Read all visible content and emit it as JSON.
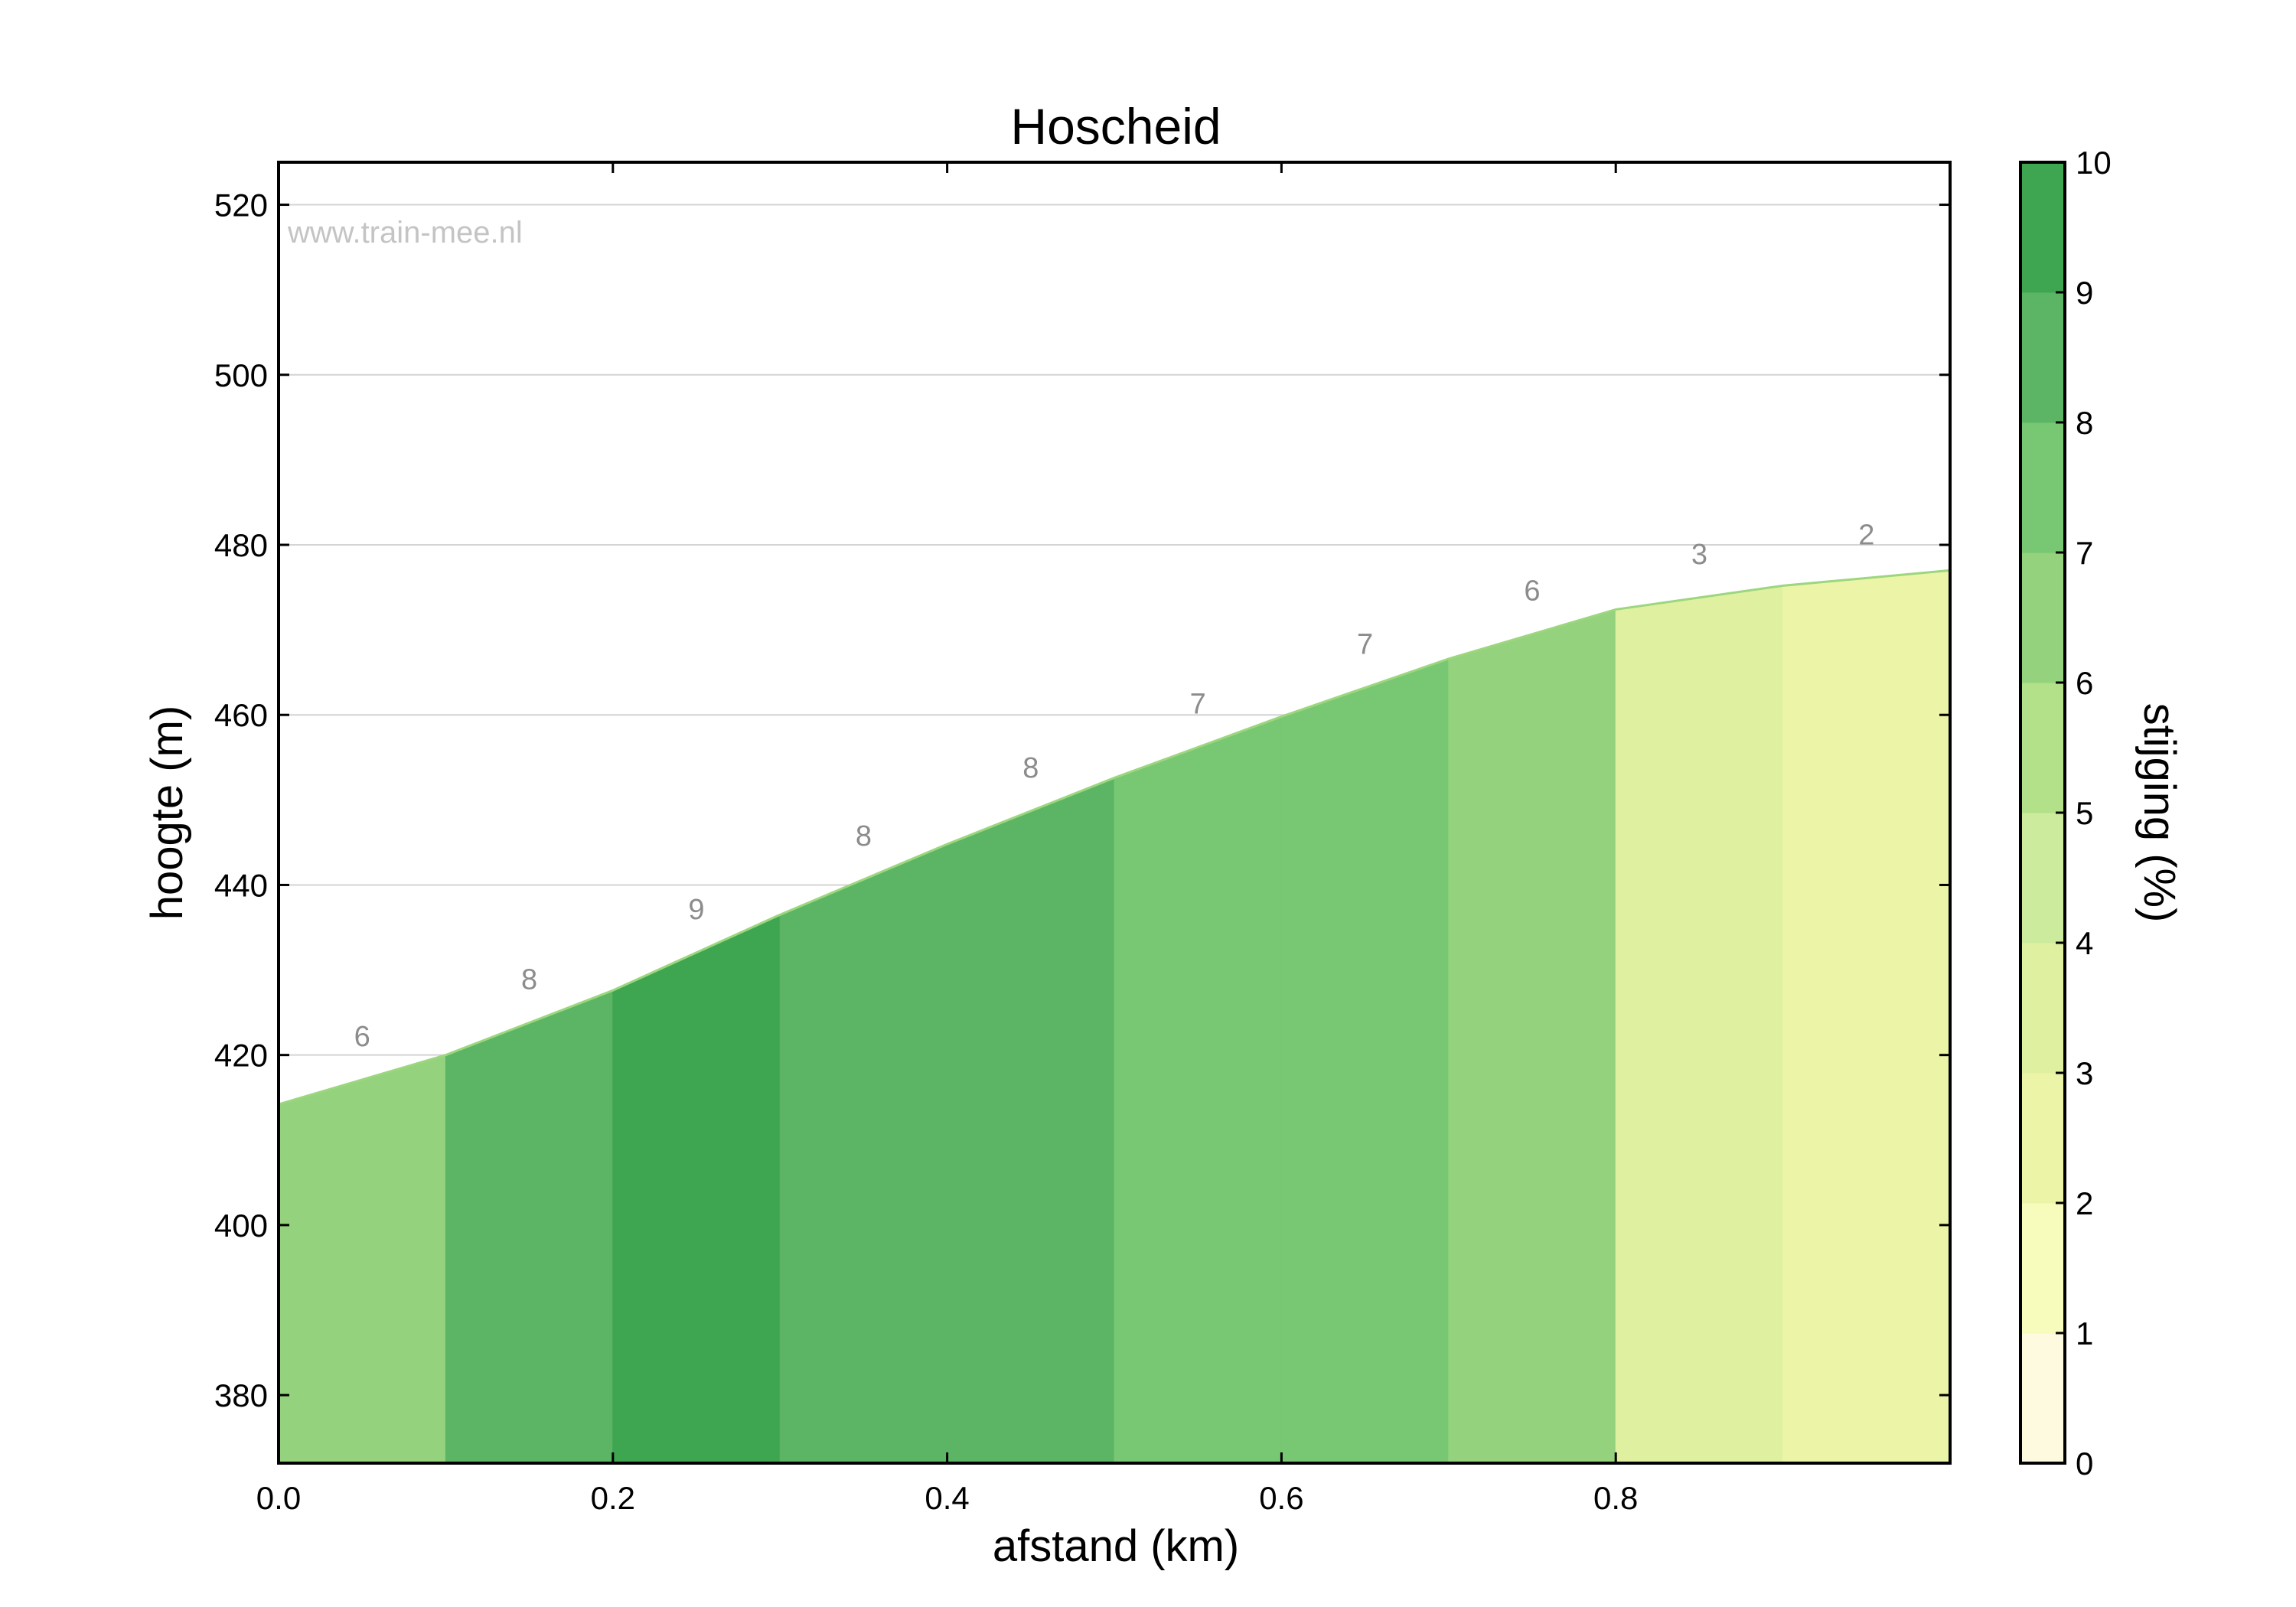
{
  "chart_data": {
    "type": "area",
    "title": "Hoscheid",
    "xlabel": "afstand (km)",
    "ylabel": "hoogte (m)",
    "watermark": "www.train-mee.nl",
    "xlim": [
      0,
      1.0
    ],
    "ylim": [
      372,
      525
    ],
    "x_ticks": [
      "0.0",
      "0.2",
      "0.4",
      "0.6",
      "0.8"
    ],
    "y_ticks": [
      "380",
      "400",
      "420",
      "440",
      "460",
      "480",
      "500",
      "520"
    ],
    "grid": true,
    "x": [
      0.0,
      0.1,
      0.2,
      0.3,
      0.4,
      0.5,
      0.6,
      0.7,
      0.8,
      0.9,
      1.0
    ],
    "elevation": [
      414.2,
      420.0,
      427.6,
      436.5,
      444.8,
      452.6,
      459.8,
      466.6,
      472.4,
      475.2,
      477.0
    ],
    "segment_labels": [
      "6",
      "8",
      "9",
      "8",
      "8",
      "7",
      "7",
      "6",
      "3",
      "2"
    ],
    "colorbar": {
      "label": "stijging (%)",
      "range": [
        0,
        10
      ],
      "ticks": [
        "0",
        "1",
        "2",
        "3",
        "4",
        "5",
        "6",
        "7",
        "8",
        "9",
        "10"
      ],
      "colors": [
        "#fdfae0",
        "#f7fbbc",
        "#ecf5a7",
        "#dff1a1",
        "#cceb9c",
        "#b3e18a",
        "#94d27e",
        "#78c773",
        "#5bb564",
        "#3ea651"
      ]
    }
  }
}
